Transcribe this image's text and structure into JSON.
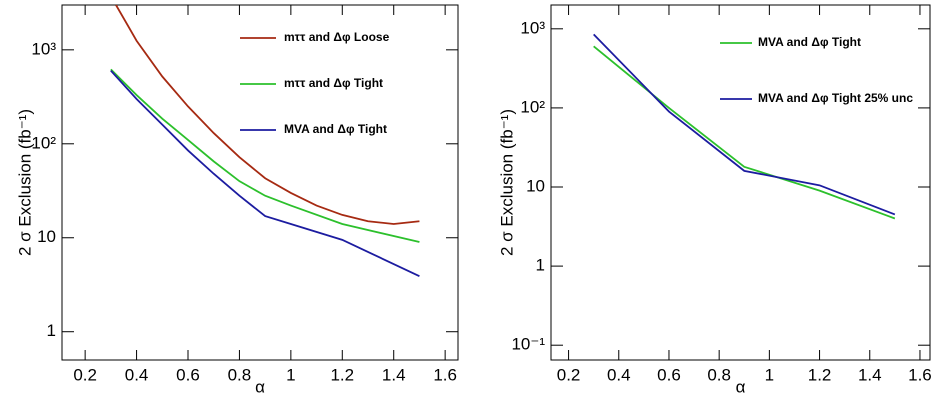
{
  "chart_data": [
    {
      "type": "line",
      "xlabel": "α",
      "ylabel": "2 σ Exclusion (fb⁻¹)",
      "log_y": true,
      "xlim": [
        0.11,
        1.65
      ],
      "ylim": [
        0.5,
        3000
      ],
      "xticks": [
        0.2,
        0.4,
        0.6,
        0.8,
        1,
        1.2,
        1.4,
        1.6
      ],
      "yticks": [
        1,
        10,
        {
          "value": 100,
          "label": "10²"
        },
        {
          "value": 1000,
          "label": "10³"
        }
      ],
      "series": [
        {
          "name": "mττ and Δφ Loose",
          "color": "#a62a12",
          "x": [
            0.32,
            0.4,
            0.5,
            0.6,
            0.7,
            0.8,
            0.9,
            1.0,
            1.1,
            1.2,
            1.3,
            1.4,
            1.5
          ],
          "values": [
            3000,
            1250,
            520,
            250,
            130,
            72,
            43,
            30,
            22,
            17.5,
            15,
            14,
            15
          ]
        },
        {
          "name": "mττ and Δφ Tight",
          "color": "#2cc02c",
          "x": [
            0.3,
            0.4,
            0.5,
            0.6,
            0.7,
            0.8,
            0.9,
            1.0,
            1.2,
            1.5
          ],
          "values": [
            620,
            330,
            185,
            110,
            65,
            40,
            28,
            22,
            14,
            9
          ]
        },
        {
          "name": "MVA and Δφ Tight",
          "color": "#1c1ca0",
          "x": [
            0.3,
            0.4,
            0.5,
            0.6,
            0.7,
            0.8,
            0.9,
            1.0,
            1.2,
            1.5
          ],
          "values": [
            600,
            300,
            160,
            85,
            48,
            28,
            17,
            14,
            9.5,
            3.9
          ]
        }
      ]
    },
    {
      "type": "line",
      "xlabel": "α",
      "ylabel": "2 σ Exclusion (fb⁻¹)",
      "log_y": true,
      "xlim": [
        0.13,
        1.64
      ],
      "ylim": [
        0.065,
        2000
      ],
      "xticks": [
        0.2,
        0.4,
        0.6,
        0.8,
        1,
        1.2,
        1.4,
        1.6
      ],
      "yticks": [
        {
          "value": 0.1,
          "label": "10⁻¹"
        },
        1,
        10,
        {
          "value": 100,
          "label": "10²"
        },
        {
          "value": 1000,
          "label": "10³"
        }
      ],
      "series": [
        {
          "name": "MVA and Δφ Tight",
          "color": "#2cc02c",
          "x": [
            0.3,
            0.6,
            0.9,
            1.2,
            1.5
          ],
          "values": [
            600,
            100,
            18,
            9,
            4
          ]
        },
        {
          "name": "MVA and Δφ Tight 25% unc",
          "color": "#1c1ca0",
          "x": [
            0.3,
            0.6,
            0.9,
            1.2,
            1.5
          ],
          "values": [
            850,
            90,
            16,
            10.5,
            4.5
          ]
        }
      ]
    }
  ]
}
